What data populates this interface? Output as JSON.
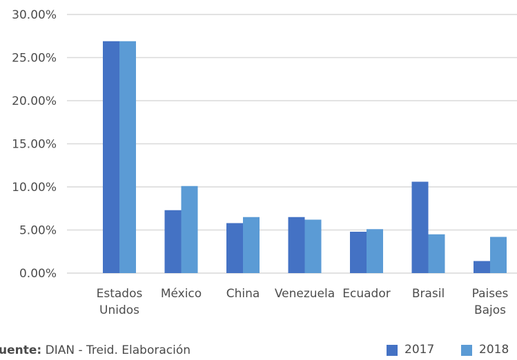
{
  "chart_data": {
    "type": "bar",
    "categories": [
      [
        "Estados",
        "Unidos"
      ],
      [
        "México"
      ],
      [
        "China"
      ],
      [
        "Venezuela"
      ],
      [
        "Ecuador"
      ],
      [
        "Brasil"
      ],
      [
        "Paises",
        "Bajos"
      ]
    ],
    "series": [
      {
        "name": "2017",
        "color": "#4472c4",
        "values": [
          26.9,
          7.3,
          5.8,
          6.5,
          4.8,
          10.6,
          1.4
        ]
      },
      {
        "name": "2018",
        "color": "#5b9bd5",
        "values": [
          26.9,
          10.1,
          6.5,
          6.2,
          5.1,
          4.5,
          4.2
        ]
      }
    ],
    "yticks": [
      "0.00%",
      "5.00%",
      "10.00%",
      "15.00%",
      "20.00%",
      "25.00%",
      "30.00%"
    ],
    "ylim": [
      0,
      30
    ],
    "grid": true,
    "legend_position": "bottom-right",
    "gridline_color": "#d9d9d9"
  },
  "footer": {
    "source_label": "uente:",
    "source_text": " DIAN - Treid. Elaboración"
  }
}
